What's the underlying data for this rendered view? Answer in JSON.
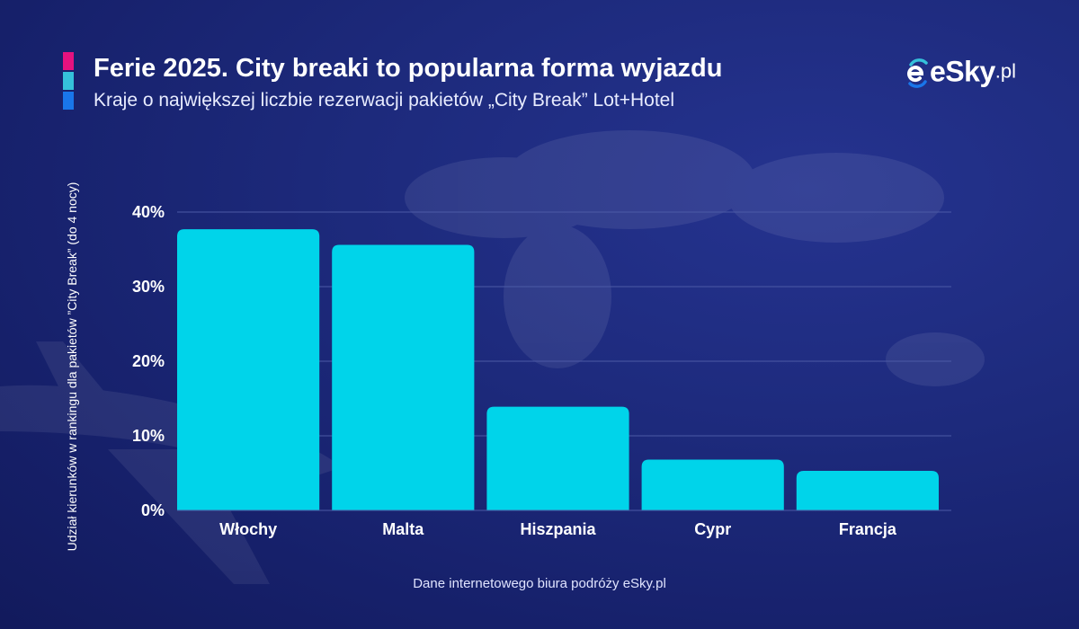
{
  "header": {
    "title": "Ferie 2025. City breaki to popularna forma wyjazdu",
    "subtitle": "Kraje o największej liczbie rezerwacji pakietów „City Break” Lot+Hotel",
    "accent_colors": [
      "#e5127f",
      "#35c1da",
      "#1976ea"
    ]
  },
  "logo": {
    "text": "eSky",
    "tld": ".pl",
    "icon": "esky-logo-icon"
  },
  "footer": {
    "source": "Dane internetowego biura podróży eSky.pl"
  },
  "colors": {
    "bar": "#00d4ea",
    "grid": "#4c5aa6",
    "background": "#1d2a7c"
  },
  "chart_data": {
    "type": "bar",
    "title": "Ferie 2025. City breaki to popularna forma wyjazdu",
    "subtitle": "Kraje o największej liczbie rezerwacji pakietów „City Break” Lot+Hotel",
    "xlabel": "",
    "ylabel": "Udział kierunków w rankingu dla pakietów ”City Break” (do 4 nocy)",
    "categories": [
      "Włochy",
      "Malta",
      "Hiszpania",
      "Cypr",
      "Francja"
    ],
    "values": [
      37.7,
      35.6,
      13.9,
      6.8,
      5.3
    ],
    "unit": "%",
    "ylim": [
      0,
      40
    ],
    "yticks": [
      0,
      10,
      20,
      30,
      40
    ],
    "ytick_labels": [
      "0%",
      "10%",
      "20%",
      "30%",
      "40%"
    ],
    "grid": true,
    "legend": "none"
  }
}
